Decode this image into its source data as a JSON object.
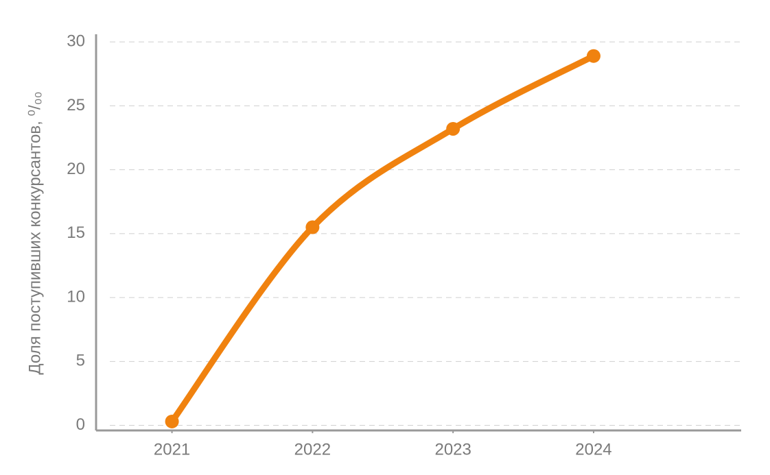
{
  "chart_data": {
    "type": "line",
    "y_label": "Доля поступивших конкурсантов, ⁰/₀₀",
    "x": [
      2021,
      2022,
      2023,
      2024
    ],
    "series": [
      {
        "name": "Доля поступивших",
        "color": "#f0820f",
        "values": [
          0.3,
          15.5,
          23.2,
          28.9
        ]
      }
    ],
    "xlim": [
      2020.46,
      2025.05
    ],
    "xticks": [
      2021,
      2022,
      2023,
      2024
    ],
    "ylim": [
      -0.4,
      30.6
    ],
    "yticks": [
      0,
      5,
      10,
      15,
      20,
      25,
      30
    ],
    "grid": true
  }
}
